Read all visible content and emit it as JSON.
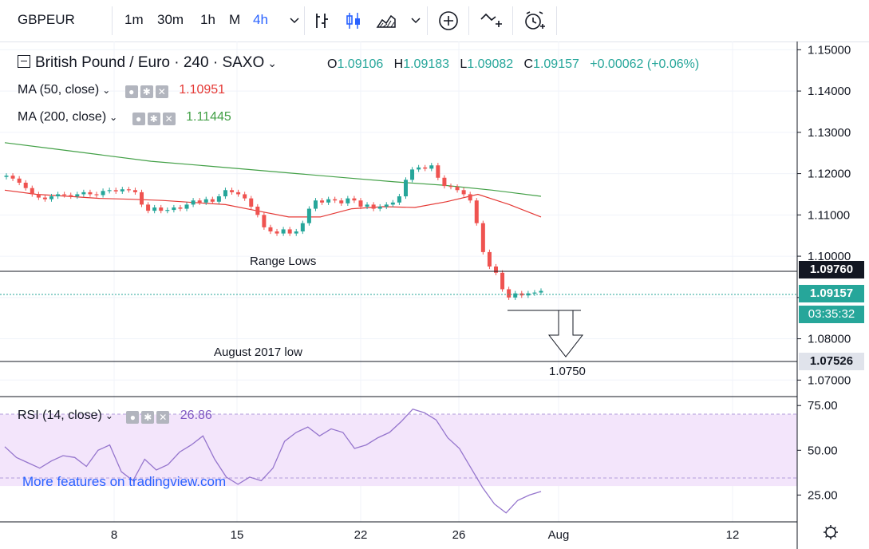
{
  "toolbar": {
    "symbol": "GBPEUR",
    "intervals": [
      "1m",
      "30m",
      "1h",
      "M",
      "4h"
    ],
    "active_interval": "4h"
  },
  "legend": {
    "title": "British Pound / Euro · 240 · SAXO",
    "open_label": "O",
    "open": "1.09106",
    "high_label": "H",
    "high": "1.09183",
    "low_label": "L",
    "low": "1.09082",
    "close_label": "C",
    "close": "1.09157",
    "change": "+0.00062 (+0.06%)",
    "ma50_label": "MA (50, close)",
    "ma50_value": "1.10951",
    "ma200_label": "MA (200, close)",
    "ma200_value": "1.11445",
    "rsi_label": "RSI (14, close)",
    "rsi_value": "26.86"
  },
  "colors": {
    "up": "#26a69a",
    "down": "#ef5350",
    "ma50": "#e53935",
    "ma200": "#43a047",
    "rsi_line": "#9575cd",
    "rsi_band": "#f3e5fb",
    "tag_dark": "#131722",
    "tag_green": "#26a69a"
  },
  "annotations": {
    "range_lows_text": "Range Lows",
    "range_lows_tag": "1.09760",
    "aug_low_text": "August 2017 low",
    "aug_low_tag": "1.07526",
    "target_text": "1.0750",
    "current_price_tag": "1.09157",
    "countdown_tag": "03:35:32"
  },
  "watermark": "More features on tradingview.com",
  "chart_data": [
    {
      "type": "candlestick",
      "x_axis_ticks": [
        "8",
        "15",
        "22",
        "26",
        "Aug",
        "12"
      ],
      "y_axis_ticks": [
        "1.15000",
        "1.14000",
        "1.13000",
        "1.12000",
        "1.11000",
        "1.10000",
        "1.09000",
        "1.08000",
        "1.07000"
      ],
      "ylim": [
        1.066,
        1.152
      ],
      "horizontal_lines": [
        1.0976,
        1.07526
      ],
      "series": [
        {
          "name": "price",
          "values": [
            1.1195,
            1.1188,
            1.1178,
            1.1165,
            1.115,
            1.1142,
            1.1138,
            1.1145,
            1.115,
            1.1148,
            1.1145,
            1.115,
            1.1155,
            1.115,
            1.1148,
            1.1158,
            1.116,
            1.1157,
            1.1162,
            1.116,
            1.1155,
            1.1125,
            1.111,
            1.1118,
            1.111,
            1.1112,
            1.1118,
            1.1115,
            1.1125,
            1.1135,
            1.113,
            1.1138,
            1.1132,
            1.1145,
            1.116,
            1.1155,
            1.115,
            1.114,
            1.112,
            1.11,
            1.107,
            1.106,
            1.1055,
            1.1065,
            1.1055,
            1.106,
            1.108,
            1.1115,
            1.1135,
            1.113,
            1.1138,
            1.1135,
            1.1128,
            1.114,
            1.1135,
            1.112,
            1.1125,
            1.1115,
            1.112,
            1.1125,
            1.113,
            1.1145,
            1.1185,
            1.121,
            1.1215,
            1.1212,
            1.122,
            1.119,
            1.117,
            1.1168,
            1.116,
            1.115,
            1.1135,
            1.108,
            1.101,
            1.0975,
            1.096,
            1.092,
            1.09,
            1.091,
            1.0905,
            1.091,
            1.0912,
            1.0916
          ]
        },
        {
          "name": "MA (50, close)",
          "values": [
            1.116,
            1.115,
            1.1145,
            1.114,
            1.1138,
            1.1135,
            1.113,
            1.1125,
            1.111,
            1.1095,
            1.1095,
            1.1115,
            1.112,
            1.1118,
            1.1132,
            1.115,
            1.1125,
            1.1095
          ]
        },
        {
          "name": "MA (200, close)",
          "values": [
            1.1275,
            1.126,
            1.1245,
            1.123,
            1.122,
            1.121,
            1.12,
            1.119,
            1.118,
            1.1172,
            1.116,
            1.1145
          ]
        }
      ]
    },
    {
      "type": "line",
      "name": "RSI (14, close)",
      "y_axis_ticks": [
        "75.00",
        "50.00",
        "25.00"
      ],
      "ylim": [
        10,
        80
      ],
      "band": [
        30,
        70
      ],
      "values": [
        52,
        46,
        43,
        40,
        44,
        47,
        46,
        41,
        50,
        53,
        38,
        33,
        45,
        39,
        42,
        49,
        53,
        58,
        45,
        35,
        31,
        35,
        33,
        40,
        55,
        60,
        63,
        58,
        62,
        60,
        51,
        53,
        57,
        60,
        66,
        73,
        71,
        67,
        57,
        51,
        40,
        29,
        20,
        15,
        22,
        25,
        27
      ]
    }
  ]
}
